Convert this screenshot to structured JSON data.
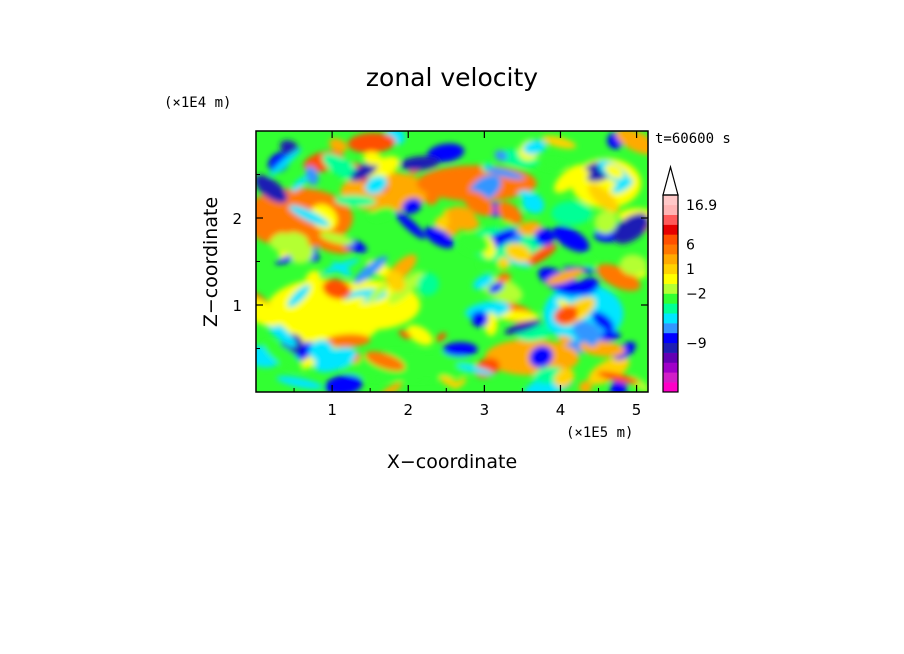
{
  "chart_data": {
    "type": "heatmap",
    "title": "zonal velocity",
    "xlabel": "X−coordinate",
    "ylabel": "Z−coordinate",
    "x_unit": "(×1E5 m)",
    "y_unit": "(×1E4 m)",
    "time_label": "t=60600 s",
    "xlim": [
      0,
      5.15
    ],
    "ylim": [
      0,
      3.0
    ],
    "x_ticks": [
      1,
      2,
      3,
      4,
      5
    ],
    "x_tick_labels": [
      "1",
      "2",
      "3",
      "4",
      "5"
    ],
    "y_ticks": [
      1,
      2
    ],
    "y_tick_labels": [
      "1",
      "2"
    ],
    "colorbar": {
      "colors": [
        "#ff00c8",
        "#d21ec8",
        "#a000c8",
        "#6400b4",
        "#1e1eb4",
        "#0000ff",
        "#3296ff",
        "#00e6ff",
        "#00ff96",
        "#32ff32",
        "#b4ff32",
        "#ffff00",
        "#ffd200",
        "#ffaa00",
        "#ff7800",
        "#ff5000",
        "#e60000",
        "#ff5a5a",
        "#ffb4b4",
        "#ffc8c8"
      ],
      "labels": [
        {
          "value": "16.9",
          "level": 19
        },
        {
          "value": "6",
          "level": 15
        },
        {
          "value": "1",
          "level": 12.5
        },
        {
          "value": "−2",
          "level": 10
        },
        {
          "value": "−9",
          "level": 5
        }
      ],
      "extend": "max"
    }
  }
}
